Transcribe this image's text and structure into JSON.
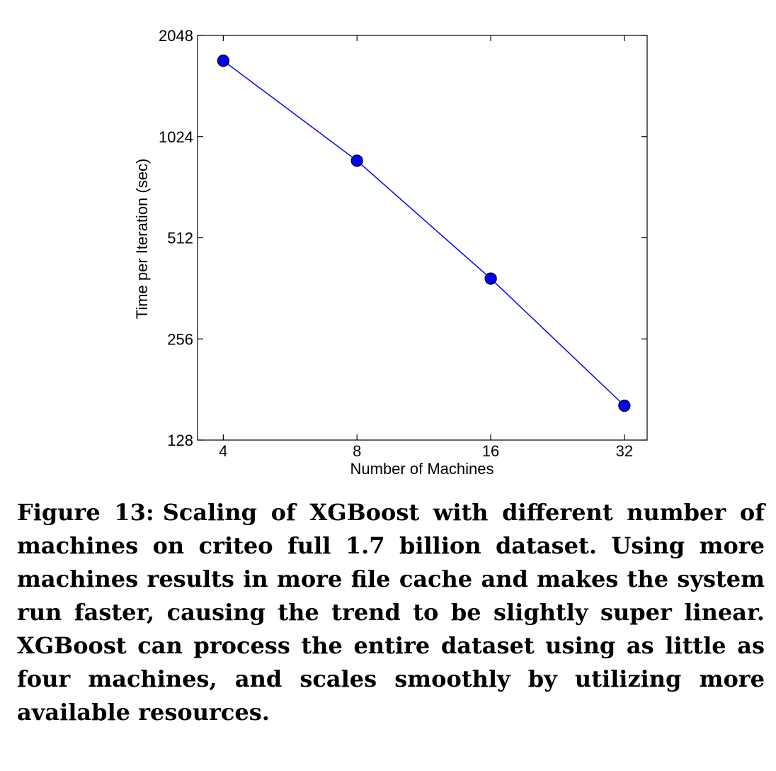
{
  "chart_data": {
    "type": "line",
    "title": "",
    "xlabel": "Number of Machines",
    "ylabel": "Time per Iteration (sec)",
    "x_scale": "log2",
    "y_scale": "log2",
    "xlim": [
      3.5,
      36
    ],
    "ylim": [
      128,
      2048
    ],
    "x_ticks": [
      4,
      8,
      16,
      32
    ],
    "x_tick_labels": [
      "4",
      "8",
      "16",
      "32"
    ],
    "y_ticks": [
      128,
      256,
      512,
      1024,
      2048
    ],
    "y_tick_labels": [
      "128",
      "256",
      "512",
      "1024",
      "2048"
    ],
    "grid": false,
    "legend": "none",
    "series": [
      {
        "x": [
          4,
          8,
          16,
          32
        ],
        "values": [
          1722,
          868,
          387,
          162
        ],
        "color": "#0000ff",
        "marker": "circle"
      }
    ]
  },
  "caption": {
    "label": "Figure 13:",
    "text": "Scaling of XGBoost with different number of machines on criteo full 1.7 billion dataset. Using more machines results in more file cache and makes the system run faster, causing the trend to be slightly super linear. XGBoost can process the entire dataset using as little as four machines, and scales smoothly by utilizing more available resources."
  }
}
